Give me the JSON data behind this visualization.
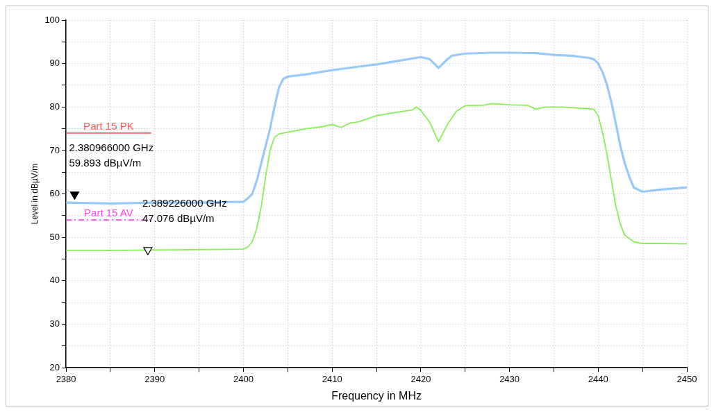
{
  "chart_data": {
    "type": "line",
    "xlabel": "Frequency in MHz",
    "ylabel": "Level in dBµV/m",
    "xlim": [
      2380,
      2450
    ],
    "ylim": [
      20,
      100
    ],
    "xticks": [
      2380,
      {
        "value": 2385,
        "label": null
      },
      2390,
      {
        "value": 2395,
        "label": null
      },
      2400,
      {
        "value": 2405,
        "label": null
      },
      2410,
      {
        "value": 2415,
        "label": null
      },
      2420,
      {
        "value": 2425,
        "label": null
      },
      2430,
      {
        "value": 2435,
        "label": null
      },
      2440,
      {
        "value": 2445,
        "label": null
      },
      2450
    ],
    "yticks": [
      20,
      {
        "value": 25,
        "label": null
      },
      30,
      {
        "value": 35,
        "label": null
      },
      40,
      {
        "value": 45,
        "label": null
      },
      50,
      {
        "value": 55,
        "label": null
      },
      60,
      {
        "value": 65,
        "label": null
      },
      70,
      {
        "value": 75,
        "label": null
      },
      80,
      {
        "value": 85,
        "label": null
      },
      90,
      {
        "value": 95,
        "label": null
      },
      100
    ],
    "grid": true,
    "marker": "none",
    "series": [
      {
        "color": "#99c9f8",
        "x": [
          2380,
          2385,
          2390,
          2395,
          2400,
          2400.5,
          2401,
          2401.5,
          2402,
          2402.5,
          2403,
          2403.5,
          2404,
          2404.5,
          2405,
          2407,
          2410,
          2413,
          2415,
          2418,
          2420,
          2421,
          2422,
          2423,
          2423.5,
          2425,
          2428,
          2430,
          2433,
          2435,
          2437,
          2439,
          2439.5,
          2440,
          2440.5,
          2441,
          2441.5,
          2442,
          2442.5,
          2443,
          2443.5,
          2444,
          2445,
          2447,
          2450
        ],
        "values": [
          58,
          57.8,
          58,
          58,
          58.2,
          59,
          60,
          63,
          67,
          71,
          75,
          80,
          84.5,
          86.5,
          87,
          87.5,
          88.5,
          89.3,
          89.8,
          90.8,
          91.5,
          91,
          89,
          91,
          91.8,
          92.3,
          92.5,
          92.5,
          92.4,
          92,
          91.8,
          91.3,
          91,
          90,
          88,
          85,
          81,
          76,
          71,
          67,
          64,
          61.5,
          60.5,
          61,
          61.5
        ]
      },
      {
        "color": "#88ee55",
        "x": [
          2380,
          2385,
          2390,
          2395,
          2400,
          2400.5,
          2401,
          2401.5,
          2402,
          2402.5,
          2403,
          2403.5,
          2404,
          2405,
          2407,
          2409,
          2410,
          2411,
          2412,
          2413,
          2415,
          2417,
          2419,
          2419.5,
          2420,
          2421,
          2422,
          2423,
          2424,
          2425,
          2427,
          2428,
          2430,
          2432,
          2433,
          2434,
          2436,
          2438,
          2439.5,
          2440,
          2440.5,
          2441,
          2441.5,
          2442,
          2442.5,
          2443,
          2444,
          2445,
          2447,
          2450
        ],
        "values": [
          47,
          47,
          47.1,
          47.2,
          47.3,
          47.8,
          49,
          52,
          57,
          64,
          70,
          73,
          73.8,
          74.2,
          75,
          75.5,
          76,
          75.3,
          76.3,
          76.6,
          78,
          78.7,
          79.3,
          80,
          79.2,
          76.5,
          72,
          76,
          79,
          80.3,
          80.4,
          80.8,
          80.5,
          80.4,
          79.5,
          80,
          80,
          79.7,
          79.5,
          78,
          74,
          69,
          63,
          57,
          53,
          50.5,
          49,
          48.6,
          48.6,
          48.5
        ]
      },
      {
        "type": "line",
        "name": "Part 15 PK",
        "color": "#ff5555",
        "line_style": "solid",
        "x": [
          2380,
          2389.6
        ],
        "values": [
          74,
          74
        ]
      },
      {
        "type": "line",
        "name": "Part 15 AV",
        "color": "#ff44ee",
        "line_style": "dashed",
        "x": [
          2380,
          2389.6
        ],
        "values": [
          54,
          54
        ]
      },
      {
        "type": "scatter",
        "color": "#000000",
        "marker": "triangle",
        "x": [
          2380.966
        ],
        "values": [
          59.9
        ]
      },
      {
        "type": "scatter",
        "color": "#000000",
        "marker": "triangle",
        "x": [
          2389.226
        ],
        "values": [
          47.1
        ]
      }
    ],
    "annotations": [
      {
        "text": "2.380966000 GHz\n59.893 dBµV/m",
        "x": 2380.966,
        "y": 59.9
      },
      {
        "text": "2.389226000 GHz\n47.076 dBµV/m",
        "x": 2389.226,
        "y": 47.1
      }
    ]
  }
}
